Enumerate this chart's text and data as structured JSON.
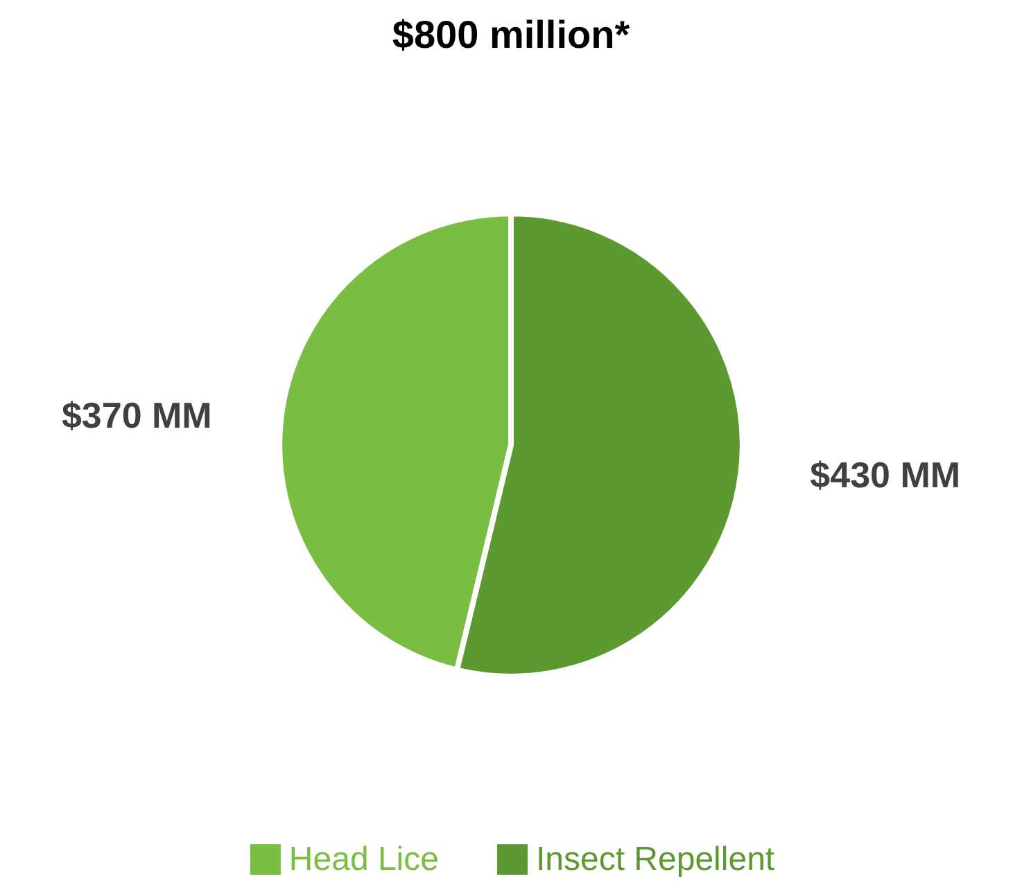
{
  "chart_data": {
    "type": "pie",
    "title": "$800 million*",
    "categories": [
      "Head Lice",
      "Insect Repellent"
    ],
    "values": [
      370,
      430
    ],
    "colors": [
      "#7abd43",
      "#5c9a31"
    ],
    "value_labels": [
      "$370 MM",
      "$430 MM"
    ],
    "legend": "bottom"
  }
}
